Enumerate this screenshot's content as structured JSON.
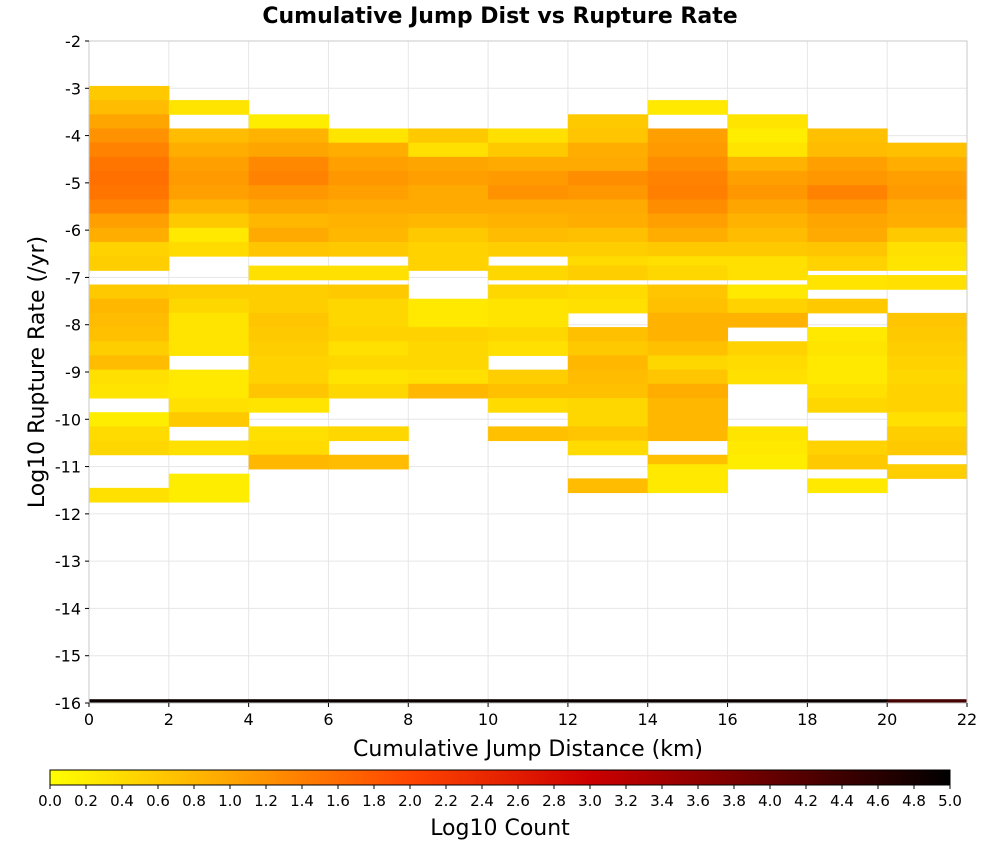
{
  "chart_data": {
    "type": "heatmap",
    "title": "Cumulative Jump Dist vs Rupture Rate",
    "xlabel": "Cumulative Jump Distance (km)",
    "ylabel": "Log10 Rupture Rate (/yr)",
    "colorbar_label": "Log10 Count",
    "xlim": [
      0,
      22
    ],
    "ylim": [
      -16,
      -2
    ],
    "x_ticks": [
      0,
      2,
      4,
      6,
      8,
      10,
      12,
      14,
      16,
      18,
      20,
      22
    ],
    "y_ticks": [
      -2,
      -3,
      -4,
      -5,
      -6,
      -7,
      -8,
      -9,
      -10,
      -11,
      -12,
      -13,
      -14,
      -15,
      -16
    ],
    "colorbar_ticks": [
      "0.0",
      "0.2",
      "0.4",
      "0.6",
      "0.8",
      "1.0",
      "1.2",
      "1.4",
      "1.6",
      "1.8",
      "2.0",
      "2.2",
      "2.4",
      "2.6",
      "2.8",
      "3.0",
      "3.2",
      "3.4",
      "3.6",
      "3.8",
      "4.0",
      "4.2",
      "4.4",
      "4.6",
      "4.8",
      "5.0"
    ],
    "colorbar_range": [
      0,
      5
    ],
    "colormap": [
      "#ffff00",
      "#ffa500",
      "#ff4500",
      "#cc0000",
      "#660000",
      "#000000"
    ],
    "grid": true,
    "x_bin_width": 2,
    "y_bin_height": 0.3,
    "columns": [
      {
        "x": 1,
        "cells": [
          [
            -3.1,
            0.6
          ],
          [
            -3.4,
            0.75
          ],
          [
            -3.7,
            1.0
          ],
          [
            -4.0,
            1.2
          ],
          [
            -4.3,
            1.35
          ],
          [
            -4.6,
            1.5
          ],
          [
            -4.9,
            1.55
          ],
          [
            -5.2,
            1.5
          ],
          [
            -5.5,
            1.35
          ],
          [
            -5.8,
            1.05
          ],
          [
            -6.1,
            0.9
          ],
          [
            -6.4,
            0.5
          ],
          [
            -6.7,
            0.55
          ],
          [
            -7.3,
            0.6
          ],
          [
            -7.6,
            0.8
          ],
          [
            -7.9,
            0.75
          ],
          [
            -8.2,
            0.7
          ],
          [
            -8.5,
            0.55
          ],
          [
            -8.8,
            0.75
          ],
          [
            -9.1,
            0.35
          ],
          [
            -9.4,
            0.3
          ],
          [
            -10.0,
            0.2
          ],
          [
            -10.3,
            0.4
          ],
          [
            -10.6,
            0.45
          ],
          [
            -11.6,
            0.35
          ]
        ]
      },
      {
        "x": 3,
        "cells": [
          [
            -3.4,
            0.3
          ],
          [
            -4.0,
            0.75
          ],
          [
            -4.3,
            0.9
          ],
          [
            -4.6,
            1.05
          ],
          [
            -4.9,
            1.1
          ],
          [
            -5.2,
            1.05
          ],
          [
            -5.5,
            0.85
          ],
          [
            -5.8,
            0.6
          ],
          [
            -6.1,
            0.25
          ],
          [
            -6.4,
            0.4
          ],
          [
            -7.3,
            0.55
          ],
          [
            -7.6,
            0.45
          ],
          [
            -7.9,
            0.3
          ],
          [
            -8.2,
            0.3
          ],
          [
            -8.5,
            0.3
          ],
          [
            -9.1,
            0.25
          ],
          [
            -9.4,
            0.25
          ],
          [
            -9.7,
            0.35
          ],
          [
            -10.0,
            0.6
          ],
          [
            -10.6,
            0.35
          ],
          [
            -11.3,
            0.2
          ],
          [
            -11.6,
            0.2
          ]
        ]
      },
      {
        "x": 5,
        "cells": [
          [
            -3.7,
            0.2
          ],
          [
            -4.0,
            0.85
          ],
          [
            -4.3,
            1.0
          ],
          [
            -4.6,
            1.3
          ],
          [
            -4.9,
            1.35
          ],
          [
            -5.2,
            1.15
          ],
          [
            -5.5,
            1.0
          ],
          [
            -5.8,
            0.8
          ],
          [
            -6.1,
            0.95
          ],
          [
            -6.4,
            0.65
          ],
          [
            -6.9,
            0.35
          ],
          [
            -7.3,
            0.55
          ],
          [
            -7.6,
            0.55
          ],
          [
            -7.9,
            0.65
          ],
          [
            -8.2,
            0.6
          ],
          [
            -8.5,
            0.55
          ],
          [
            -8.8,
            0.5
          ],
          [
            -9.1,
            0.5
          ],
          [
            -9.4,
            0.65
          ],
          [
            -9.7,
            0.3
          ],
          [
            -10.3,
            0.35
          ],
          [
            -10.6,
            0.4
          ],
          [
            -10.9,
            0.8
          ]
        ]
      },
      {
        "x": 7,
        "cells": [
          [
            -4.0,
            0.3
          ],
          [
            -4.3,
            0.9
          ],
          [
            -4.6,
            1.05
          ],
          [
            -4.9,
            1.15
          ],
          [
            -5.2,
            1.05
          ],
          [
            -5.5,
            0.95
          ],
          [
            -5.8,
            0.85
          ],
          [
            -6.1,
            0.8
          ],
          [
            -6.4,
            0.6
          ],
          [
            -6.9,
            0.35
          ],
          [
            -7.3,
            0.6
          ],
          [
            -7.6,
            0.45
          ],
          [
            -7.9,
            0.45
          ],
          [
            -8.2,
            0.5
          ],
          [
            -8.5,
            0.35
          ],
          [
            -8.8,
            0.45
          ],
          [
            -9.1,
            0.3
          ],
          [
            -9.4,
            0.45
          ],
          [
            -10.3,
            0.45
          ],
          [
            -10.9,
            0.75
          ]
        ]
      },
      {
        "x": 9,
        "cells": [
          [
            -4.0,
            0.6
          ],
          [
            -4.3,
            0.35
          ],
          [
            -4.6,
            1.0
          ],
          [
            -4.9,
            1.05
          ],
          [
            -5.2,
            0.95
          ],
          [
            -5.5,
            0.95
          ],
          [
            -5.8,
            0.8
          ],
          [
            -6.1,
            0.6
          ],
          [
            -6.4,
            0.5
          ],
          [
            -6.7,
            0.5
          ],
          [
            -7.6,
            0.25
          ],
          [
            -7.9,
            0.25
          ],
          [
            -8.2,
            0.5
          ],
          [
            -8.5,
            0.45
          ],
          [
            -8.8,
            0.45
          ],
          [
            -9.1,
            0.35
          ],
          [
            -9.4,
            0.8
          ]
        ]
      },
      {
        "x": 11,
        "cells": [
          [
            -4.0,
            0.35
          ],
          [
            -4.3,
            0.6
          ],
          [
            -4.6,
            0.95
          ],
          [
            -4.9,
            1.1
          ],
          [
            -5.2,
            1.2
          ],
          [
            -5.5,
            0.95
          ],
          [
            -5.8,
            0.85
          ],
          [
            -6.1,
            0.75
          ],
          [
            -6.4,
            0.55
          ],
          [
            -6.9,
            0.45
          ],
          [
            -7.3,
            0.45
          ],
          [
            -7.6,
            0.3
          ],
          [
            -7.9,
            0.3
          ],
          [
            -8.2,
            0.45
          ],
          [
            -8.5,
            0.35
          ],
          [
            -9.1,
            0.55
          ],
          [
            -9.4,
            0.7
          ],
          [
            -9.7,
            0.4
          ],
          [
            -10.3,
            0.7
          ]
        ]
      },
      {
        "x": 13,
        "cells": [
          [
            -3.7,
            0.6
          ],
          [
            -4.0,
            0.65
          ],
          [
            -4.3,
            0.9
          ],
          [
            -4.6,
            0.95
          ],
          [
            -4.9,
            1.25
          ],
          [
            -5.2,
            1.15
          ],
          [
            -5.5,
            0.95
          ],
          [
            -5.8,
            0.9
          ],
          [
            -6.1,
            0.7
          ],
          [
            -6.4,
            0.55
          ],
          [
            -6.7,
            0.4
          ],
          [
            -6.9,
            0.55
          ],
          [
            -7.3,
            0.4
          ],
          [
            -7.6,
            0.35
          ],
          [
            -8.2,
            0.7
          ],
          [
            -8.5,
            0.6
          ],
          [
            -8.8,
            0.8
          ],
          [
            -9.1,
            0.75
          ],
          [
            -9.4,
            0.7
          ],
          [
            -9.7,
            0.45
          ],
          [
            -10.0,
            0.45
          ],
          [
            -10.3,
            0.65
          ],
          [
            -10.6,
            0.4
          ],
          [
            -11.4,
            0.75
          ]
        ]
      },
      {
        "x": 15,
        "cells": [
          [
            -3.4,
            0.25
          ],
          [
            -4.0,
            1.05
          ],
          [
            -4.3,
            1.1
          ],
          [
            -4.6,
            1.25
          ],
          [
            -4.9,
            1.35
          ],
          [
            -5.2,
            1.4
          ],
          [
            -5.5,
            1.25
          ],
          [
            -5.8,
            1.05
          ],
          [
            -6.1,
            0.9
          ],
          [
            -6.4,
            0.6
          ],
          [
            -6.7,
            0.35
          ],
          [
            -6.9,
            0.45
          ],
          [
            -7.3,
            0.65
          ],
          [
            -7.6,
            0.7
          ],
          [
            -7.9,
            0.85
          ],
          [
            -8.2,
            0.85
          ],
          [
            -8.5,
            0.7
          ],
          [
            -8.8,
            0.45
          ],
          [
            -9.1,
            0.65
          ],
          [
            -9.4,
            0.9
          ],
          [
            -9.7,
            0.8
          ],
          [
            -10.0,
            0.8
          ],
          [
            -10.3,
            0.8
          ],
          [
            -10.9,
            0.7
          ],
          [
            -11.1,
            0.25
          ],
          [
            -11.4,
            0.25
          ]
        ]
      },
      {
        "x": 17,
        "cells": [
          [
            -3.7,
            0.3
          ],
          [
            -4.0,
            0.2
          ],
          [
            -4.3,
            0.3
          ],
          [
            -4.6,
            0.85
          ],
          [
            -4.9,
            1.05
          ],
          [
            -5.2,
            1.15
          ],
          [
            -5.5,
            1.0
          ],
          [
            -5.8,
            0.85
          ],
          [
            -6.1,
            0.75
          ],
          [
            -6.4,
            0.6
          ],
          [
            -6.7,
            0.35
          ],
          [
            -6.9,
            0.35
          ],
          [
            -7.3,
            0.25
          ],
          [
            -7.6,
            0.5
          ],
          [
            -7.9,
            0.85
          ],
          [
            -8.5,
            0.5
          ],
          [
            -8.8,
            0.4
          ],
          [
            -9.1,
            0.35
          ],
          [
            -10.3,
            0.3
          ],
          [
            -10.6,
            0.25
          ],
          [
            -10.9,
            0.2
          ]
        ]
      },
      {
        "x": 19,
        "cells": [
          [
            -4.0,
            0.7
          ],
          [
            -4.3,
            0.75
          ],
          [
            -4.6,
            1.05
          ],
          [
            -4.9,
            1.15
          ],
          [
            -5.2,
            1.35
          ],
          [
            -5.5,
            1.15
          ],
          [
            -5.8,
            1.0
          ],
          [
            -6.1,
            0.95
          ],
          [
            -6.4,
            0.65
          ],
          [
            -6.7,
            0.5
          ],
          [
            -7.1,
            0.3
          ],
          [
            -7.6,
            0.6
          ],
          [
            -8.2,
            0.25
          ],
          [
            -8.5,
            0.3
          ],
          [
            -8.8,
            0.25
          ],
          [
            -9.1,
            0.25
          ],
          [
            -9.4,
            0.35
          ],
          [
            -9.7,
            0.45
          ],
          [
            -10.6,
            0.5
          ],
          [
            -10.9,
            0.6
          ],
          [
            -11.4,
            0.25
          ]
        ]
      },
      {
        "x": 21,
        "cells": [
          [
            -4.3,
            0.7
          ],
          [
            -4.6,
            0.9
          ],
          [
            -4.9,
            1.05
          ],
          [
            -5.2,
            1.1
          ],
          [
            -5.5,
            0.95
          ],
          [
            -5.8,
            0.9
          ],
          [
            -6.1,
            0.6
          ],
          [
            -6.4,
            0.35
          ],
          [
            -6.7,
            0.3
          ],
          [
            -7.1,
            0.35
          ],
          [
            -7.9,
            0.65
          ],
          [
            -8.2,
            0.6
          ],
          [
            -8.5,
            0.55
          ],
          [
            -8.8,
            0.5
          ],
          [
            -9.1,
            0.45
          ],
          [
            -9.4,
            0.5
          ],
          [
            -9.7,
            0.5
          ],
          [
            -10.0,
            0.35
          ],
          [
            -10.3,
            0.55
          ],
          [
            -10.6,
            0.6
          ],
          [
            -11.1,
            0.55
          ]
        ]
      }
    ],
    "bottom_row": {
      "y": -16,
      "values": [
        4.9,
        4.9,
        4.9,
        4.9,
        4.9,
        4.9,
        4.9,
        4.9,
        4.9,
        4.9,
        4.3
      ]
    }
  }
}
